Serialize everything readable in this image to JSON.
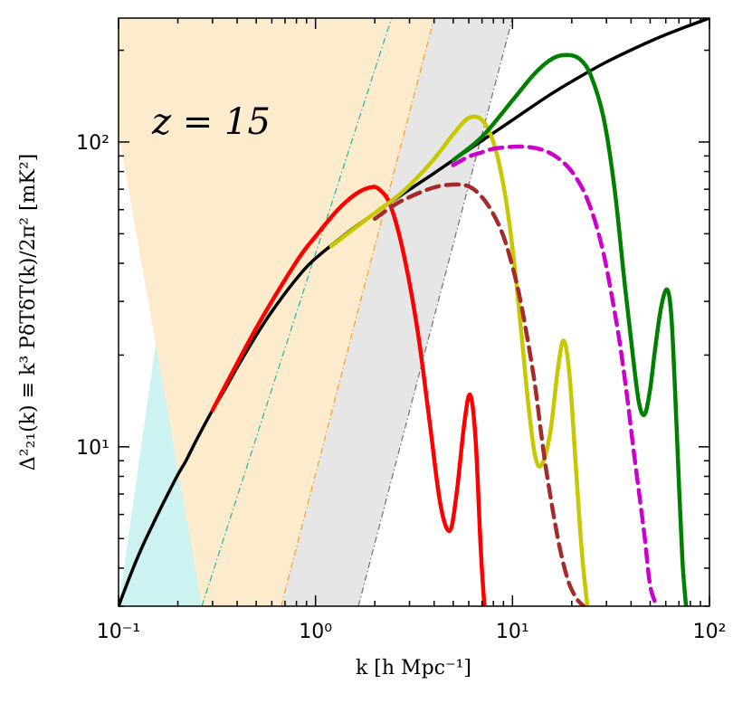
{
  "chart_data": {
    "type": "line",
    "annotation": "z = 15",
    "xlabel": "k [h Mpc⁻¹]",
    "ylabel": "Δ²₂₁(k) ≡ k³ PδTδT(k)/2π² [mK²]",
    "xscale": "log",
    "yscale": "log",
    "xlim": [
      0.1,
      100
    ],
    "ylim": [
      3.0,
      255
    ],
    "xticks": [
      {
        "value": 0.1,
        "label": "10⁻¹"
      },
      {
        "value": 1,
        "label": "10⁰"
      },
      {
        "value": 10,
        "label": "10¹"
      },
      {
        "value": 100,
        "label": "10²"
      }
    ],
    "yticks": [
      {
        "value": 10,
        "label": "10¹"
      },
      {
        "value": 100,
        "label": "10²"
      }
    ],
    "bands": [
      {
        "name": "cyan-band",
        "color": "#cdf2f2",
        "edge_color": "#20b2aa",
        "left_line": [
          [
            0.1,
            0.82
          ],
          [
            0.265,
            3.0
          ]
        ],
        "right_line": [
          [
            0.1,
            3.0
          ],
          [
            0.265,
            255
          ]
        ]
      },
      {
        "name": "orange-band",
        "color": "#fdebce",
        "edge_color": "#ff9d1a",
        "left_line": [
          [
            0.265,
            3.0
          ],
          [
            0.67,
            0.1
          ]
        ],
        "right_line": [
          [
            0.67,
            3.0
          ],
          [
            4.0,
            255
          ]
        ]
      },
      {
        "name": "gray-band",
        "color": "#e6e6e6",
        "edge_color": "#707070",
        "left_line": [
          [
            0.67,
            3.0
          ],
          [
            4.0,
            255
          ]
        ],
        "right_line": [
          [
            1.65,
            3.0
          ],
          [
            10.0,
            255
          ]
        ]
      }
    ],
    "band_edges": [
      {
        "name": "cyan-edge",
        "color": "#20b2aa",
        "k": [
          0.265,
          2.43
        ],
        "delta2": [
          3.0,
          255
        ]
      },
      {
        "name": "orange-edge",
        "color": "#ff9d1a",
        "k": [
          0.67,
          4.0
        ],
        "delta2": [
          3.0,
          255
        ]
      },
      {
        "name": "gray-edge",
        "color": "#707070",
        "k": [
          1.65,
          10.0
        ],
        "delta2": [
          3.0,
          255
        ]
      }
    ],
    "series": [
      {
        "name": "black",
        "color": "#000000",
        "style": "solid",
        "x": [
          0.1,
          0.115,
          0.13,
          0.15,
          0.17,
          0.2,
          0.22,
          0.25,
          0.3,
          0.35,
          0.4,
          0.5,
          0.6,
          0.8,
          1,
          1.5,
          2,
          3,
          4,
          5,
          7,
          10,
          15,
          20,
          30,
          50,
          70,
          100
        ],
        "y": [
          3.0,
          3.8,
          4.6,
          5.6,
          6.6,
          8.1,
          9.0,
          10.6,
          13.2,
          15.6,
          18.2,
          23.2,
          27.8,
          35.6,
          41.5,
          51.2,
          58.5,
          69.8,
          79.0,
          87.2,
          101,
          118,
          141,
          158,
          183,
          214,
          234,
          255
        ]
      },
      {
        "name": "red",
        "color": "#ff0000",
        "style": "solid",
        "x": [
          0.3,
          0.5,
          0.8,
          1.0,
          1.3,
          1.6,
          1.9,
          2.1,
          2.4,
          2.8,
          3.3,
          3.8,
          4.3,
          4.8,
          5.2,
          5.7,
          6.1,
          6.5,
          6.9,
          7.2
        ],
        "y": [
          13.2,
          24.5,
          40.5,
          49,
          60,
          67.5,
          71,
          70,
          62,
          43,
          24,
          12,
          6.5,
          5.3,
          7.0,
          12.0,
          14.8,
          10.5,
          4.6,
          3.0
        ]
      },
      {
        "name": "yellow",
        "color": "#c8c800",
        "style": "solid",
        "x": [
          1.2,
          2,
          2.5,
          3,
          4,
          5,
          6,
          7,
          8,
          9,
          10,
          11,
          12,
          13,
          14,
          15.5,
          17,
          18.2,
          19.5,
          21,
          22.5,
          24
        ],
        "y": [
          45.5,
          58.5,
          65,
          72,
          88,
          106,
          120,
          118,
          100,
          72,
          45,
          25,
          14,
          9.4,
          8.7,
          11,
          18,
          22.3,
          17,
          8.5,
          4.5,
          3.0
        ]
      },
      {
        "name": "green",
        "color": "#008000",
        "style": "solid",
        "x": [
          5,
          7,
          10,
          13,
          16,
          19,
          22,
          25,
          29,
          33,
          37,
          41,
          44,
          47,
          50,
          53,
          57,
          61,
          64,
          67,
          70,
          73,
          76
        ],
        "y": [
          87.2,
          104,
          137,
          168,
          188,
          193,
          187,
          165,
          120,
          70,
          35,
          19.5,
          13.8,
          12.8,
          15.5,
          21,
          29,
          32.8,
          27,
          15,
          7.5,
          4.2,
          3.0
        ]
      },
      {
        "name": "brown-dashed",
        "color": "#a52a2a",
        "style": "dashed",
        "x": [
          2,
          2.5,
          3,
          4,
          5,
          6,
          7,
          8,
          9,
          10,
          11,
          12,
          13,
          14,
          15,
          17,
          19,
          21,
          23
        ],
        "y": [
          56,
          62,
          66,
          71,
          72.5,
          71.5,
          66,
          58,
          49,
          39,
          30,
          22,
          16,
          11,
          8,
          5,
          3.7,
          3.2,
          3.0
        ]
      },
      {
        "name": "magenta-dashed",
        "color": "#cc00cc",
        "style": "dashed",
        "x": [
          5,
          6,
          7,
          8,
          10,
          12,
          14,
          16,
          18,
          20,
          23,
          26,
          29,
          32,
          35,
          38,
          41,
          44,
          47,
          50,
          54
        ],
        "y": [
          84,
          89.5,
          92.5,
          95,
          96.5,
          96.3,
          94.5,
          91,
          86,
          80,
          69,
          56,
          43,
          31,
          22,
          15,
          10,
          7,
          5,
          3.5,
          3.0
        ]
      }
    ]
  }
}
